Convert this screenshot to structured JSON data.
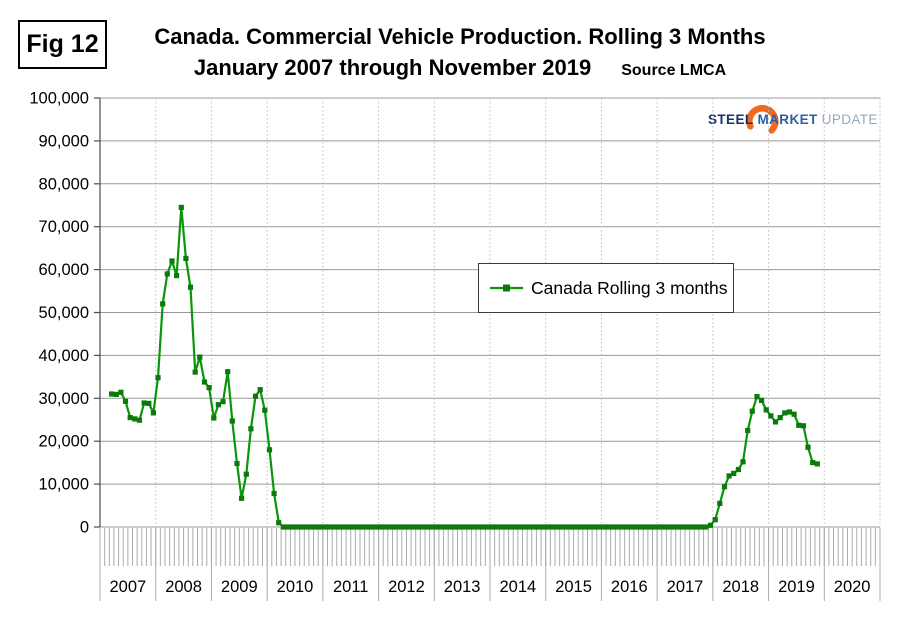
{
  "fig_label": "Fig 12",
  "title_line1": "Canada. Commercial Vehicle Production. Rolling 3 Months",
  "title_line2": "January 2007 through November 2019",
  "source_label": "Source LMCA",
  "logo": {
    "word1": "STEEL",
    "word2": "MARKET",
    "word3": "UPDATE",
    "swoosh_color": "#ee6a1e"
  },
  "legend": {
    "label": "Canada Rolling 3 months"
  },
  "chart_data": {
    "type": "line",
    "title": "Canada. Commercial Vehicle Production. Rolling 3 Months",
    "subtitle": "January 2007 through November 2019",
    "series_name": "Canada Rolling 3 months",
    "line_color": "#0a960a",
    "marker_color": "#0a7a0a",
    "grid": true,
    "legend_position": "center-right",
    "ylim": [
      0,
      100000
    ],
    "ytick_step": 10000,
    "ytick_labels": [
      "0",
      "10,000",
      "20,000",
      "30,000",
      "40,000",
      "50,000",
      "60,000",
      "70,000",
      "80,000",
      "90,000",
      "100,000"
    ],
    "x_years": [
      "2007",
      "2008",
      "2009",
      "2010",
      "2011",
      "2012",
      "2013",
      "2014",
      "2015",
      "2016",
      "2017",
      "2018",
      "2019",
      "2020"
    ],
    "x_monthly": true,
    "first_point": "2007-03",
    "last_point": "2019-11",
    "start_month_offset": 2,
    "values": [
      31000,
      30900,
      31400,
      29300,
      25500,
      25200,
      24900,
      28900,
      28800,
      26600,
      34800,
      52000,
      59000,
      62000,
      58600,
      74500,
      62600,
      55900,
      36100,
      39600,
      33800,
      32500,
      25400,
      28500,
      29200,
      36200,
      24700,
      14800,
      6700,
      12300,
      22900,
      30500,
      32000,
      27200,
      18000,
      7800,
      1000,
      0,
      0,
      0,
      0,
      0,
      0,
      0,
      0,
      0,
      0,
      0,
      0,
      0,
      0,
      0,
      0,
      0,
      0,
      0,
      0,
      0,
      0,
      0,
      0,
      0,
      0,
      0,
      0,
      0,
      0,
      0,
      0,
      0,
      0,
      0,
      0,
      0,
      0,
      0,
      0,
      0,
      0,
      0,
      0,
      0,
      0,
      0,
      0,
      0,
      0,
      0,
      0,
      0,
      0,
      0,
      0,
      0,
      0,
      0,
      0,
      0,
      0,
      0,
      0,
      0,
      0,
      0,
      0,
      0,
      0,
      0,
      0,
      0,
      0,
      0,
      0,
      0,
      0,
      0,
      0,
      0,
      0,
      0,
      0,
      0,
      0,
      0,
      0,
      0,
      0,
      0,
      0,
      400,
      1700,
      5500,
      9400,
      11900,
      12500,
      13400,
      15200,
      22500,
      27000,
      30400,
      29500,
      27300,
      25900,
      24500,
      25500,
      26600,
      26800,
      26300,
      23700,
      23600,
      18600,
      15000,
      14700
    ]
  }
}
